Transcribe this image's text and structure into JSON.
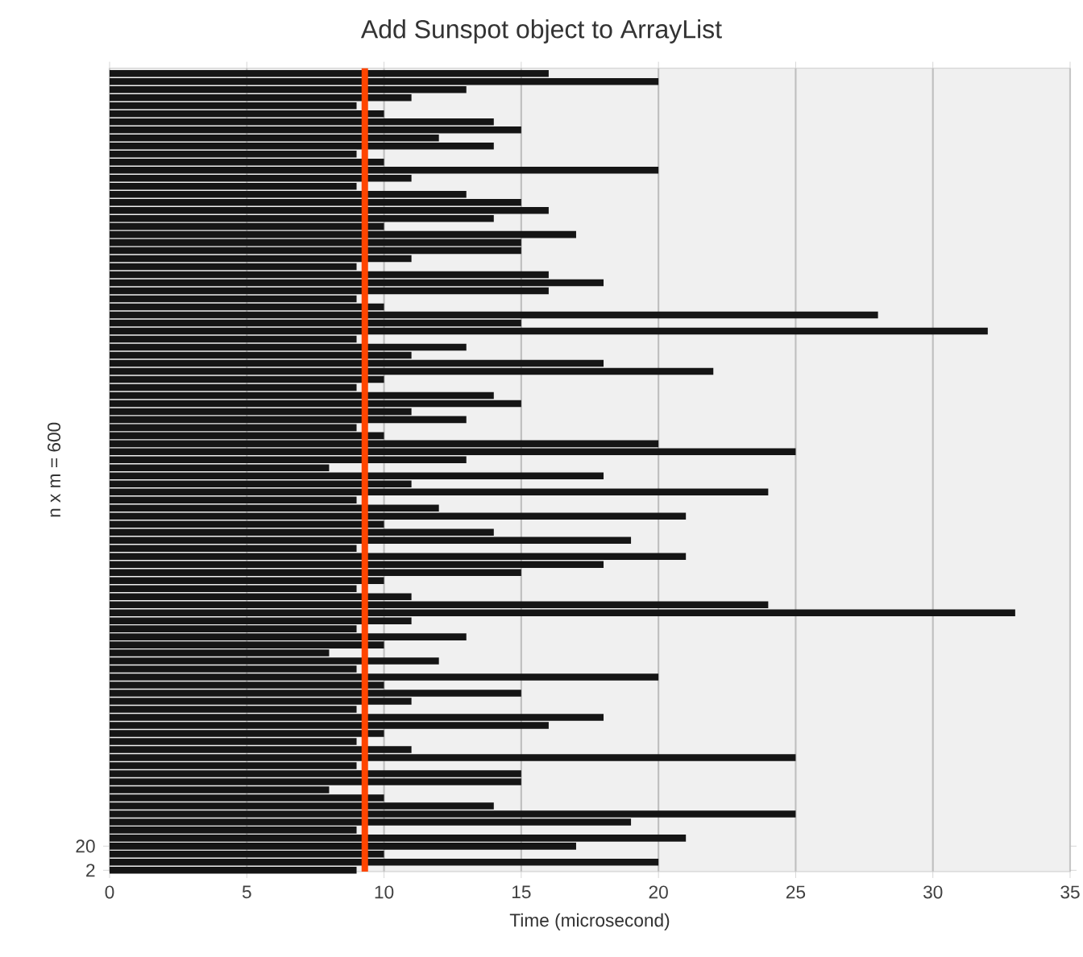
{
  "chart_data": {
    "type": "bar",
    "orientation": "horizontal",
    "title": "Add Sunspot object to ArrayList",
    "xlabel": "Time (microsecond)",
    "ylabel": "n x m = 600",
    "x": [
      2,
      8,
      14,
      20,
      26,
      32,
      38,
      44,
      50,
      56,
      62,
      68,
      74,
      80,
      86,
      92,
      98,
      104,
      110,
      116,
      122,
      128,
      134,
      140,
      146,
      152,
      158,
      164,
      170,
      176,
      182,
      188,
      194,
      200,
      206,
      212,
      218,
      224,
      230,
      236,
      242,
      248,
      254,
      260,
      266,
      272,
      278,
      284,
      290,
      296,
      302,
      308,
      314,
      320,
      326,
      332,
      338,
      344,
      350,
      356,
      362,
      368,
      374,
      380,
      386,
      392,
      398,
      404,
      410,
      416,
      422,
      428,
      434,
      440,
      446,
      452,
      458,
      464,
      470,
      476,
      482,
      488,
      494,
      500,
      506,
      512,
      518,
      524,
      530,
      536,
      542,
      548,
      554,
      560,
      566,
      572,
      578,
      584,
      590,
      596
    ],
    "values": [
      9,
      20,
      10,
      17,
      21,
      9,
      19,
      25,
      14,
      10,
      8,
      15,
      15,
      9,
      25,
      11,
      9,
      10,
      16,
      18,
      9,
      11,
      15,
      10,
      20,
      9,
      12,
      8,
      10,
      13,
      9,
      11,
      33,
      24,
      11,
      9,
      10,
      15,
      18,
      21,
      9,
      19,
      14,
      10,
      21,
      12,
      9,
      24,
      11,
      18,
      8,
      13,
      25,
      20,
      10,
      9,
      13,
      11,
      15,
      14,
      9,
      10,
      22,
      18,
      11,
      13,
      9,
      32,
      15,
      28,
      10,
      9,
      16,
      18,
      16,
      9,
      11,
      15,
      15,
      17,
      10,
      14,
      16,
      15,
      13,
      9,
      11,
      20,
      10,
      9,
      14,
      12,
      15,
      14,
      10,
      9,
      11,
      13,
      20,
      16
    ],
    "color": "#151515",
    "xlim": [
      0,
      35
    ],
    "xticks": [
      0,
      5,
      10,
      15,
      20,
      25,
      30,
      35
    ],
    "ylim": [
      1,
      600
    ],
    "yticks": [
      2,
      20
    ],
    "grid": "x",
    "ref_lines": [
      {
        "axis": "x",
        "value": 9.3,
        "color": "#ff4500"
      }
    ]
  }
}
